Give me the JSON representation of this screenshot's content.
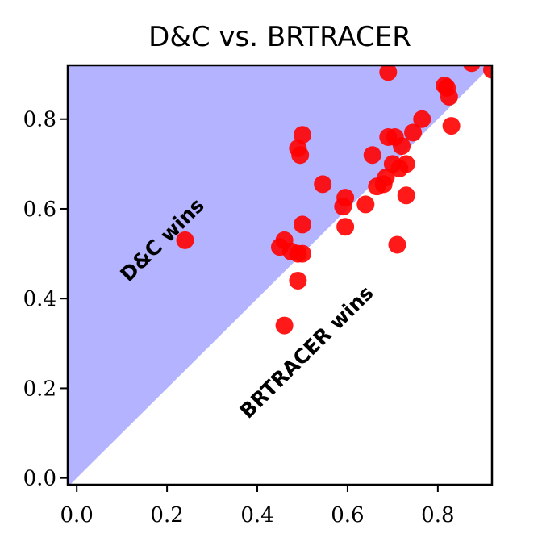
{
  "chart_data": {
    "type": "scatter",
    "title": "D&C vs. BRTRACER",
    "xlabel": "",
    "ylabel": "",
    "xlim": [
      -0.02,
      0.92
    ],
    "ylim": [
      -0.015,
      0.92
    ],
    "x_ticks": [
      "0.0",
      "0.2",
      "0.4",
      "0.6",
      "0.8"
    ],
    "y_ticks": [
      "0.0",
      "0.2",
      "0.4",
      "0.6",
      "0.8"
    ],
    "grid": false,
    "diagonal_line": "y = x",
    "regions": {
      "upper_left": {
        "label": "D&C wins",
        "color": "#b3b3ff"
      },
      "lower_right": {
        "label": "BRTRACER wins",
        "color": "#ffffff"
      }
    },
    "point_color": "#ff0000",
    "point_alpha": 0.9,
    "points": [
      [
        0.24,
        0.53
      ],
      [
        0.45,
        0.515
      ],
      [
        0.46,
        0.53
      ],
      [
        0.475,
        0.505
      ],
      [
        0.49,
        0.5
      ],
      [
        0.5,
        0.5
      ],
      [
        0.5,
        0.565
      ],
      [
        0.49,
        0.735
      ],
      [
        0.495,
        0.72
      ],
      [
        0.5,
        0.765
      ],
      [
        0.46,
        0.34
      ],
      [
        0.49,
        0.44
      ],
      [
        0.545,
        0.655
      ],
      [
        0.59,
        0.605
      ],
      [
        0.595,
        0.625
      ],
      [
        0.595,
        0.56
      ],
      [
        0.64,
        0.61
      ],
      [
        0.655,
        0.72
      ],
      [
        0.665,
        0.65
      ],
      [
        0.68,
        0.655
      ],
      [
        0.685,
        0.67
      ],
      [
        0.69,
        0.76
      ],
      [
        0.7,
        0.7
      ],
      [
        0.705,
        0.76
      ],
      [
        0.71,
        0.52
      ],
      [
        0.715,
        0.69
      ],
      [
        0.72,
        0.74
      ],
      [
        0.73,
        0.63
      ],
      [
        0.73,
        0.7
      ],
      [
        0.745,
        0.77
      ],
      [
        0.765,
        0.8
      ],
      [
        0.69,
        0.905
      ],
      [
        0.815,
        0.875
      ],
      [
        0.82,
        0.87
      ],
      [
        0.825,
        0.85
      ],
      [
        0.83,
        0.785
      ],
      [
        0.875,
        0.925
      ],
      [
        0.92,
        0.91
      ]
    ]
  }
}
